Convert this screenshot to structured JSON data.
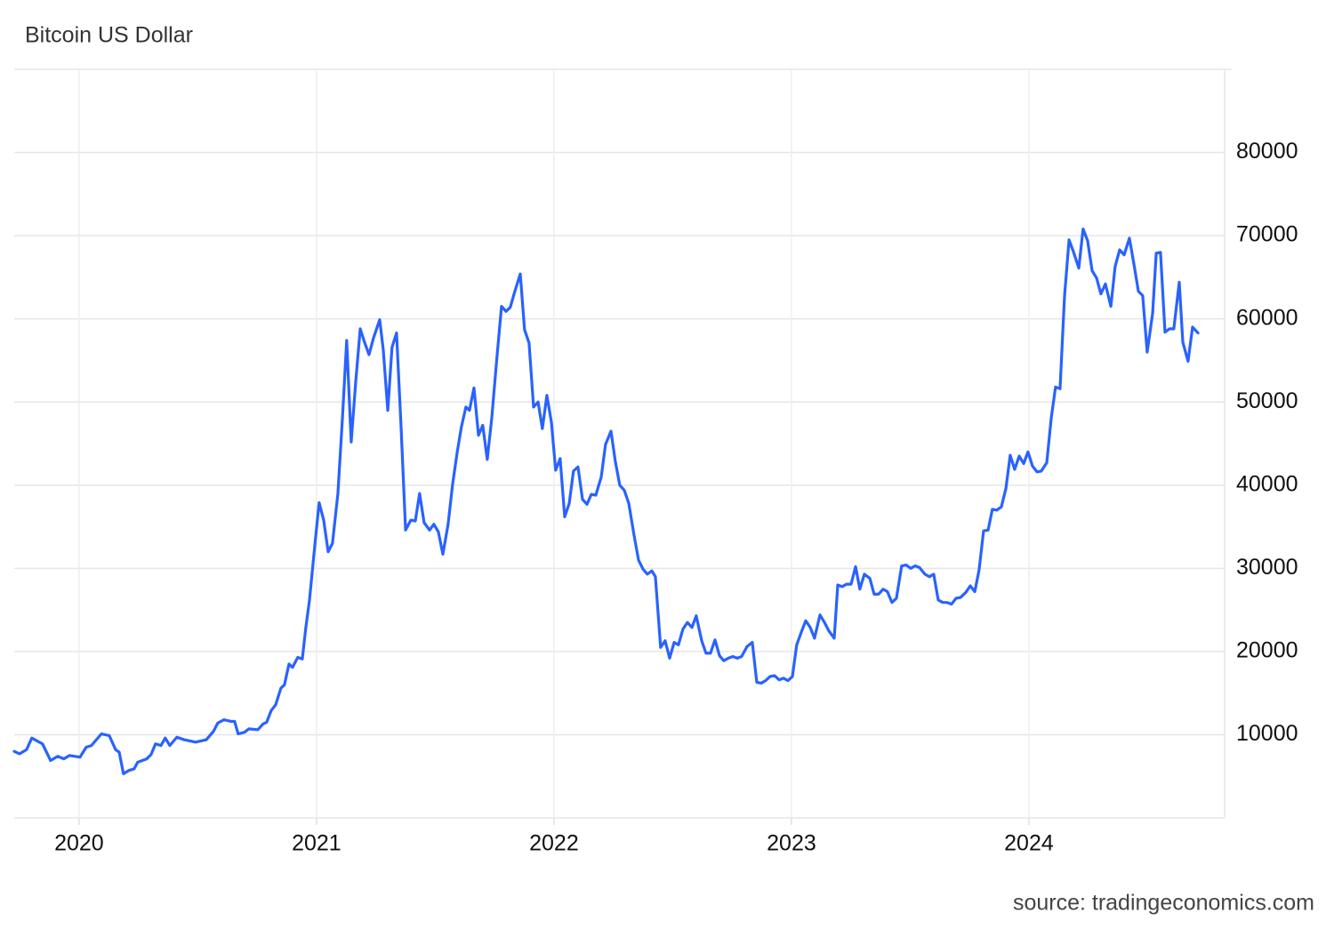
{
  "chart_data": {
    "type": "line",
    "title": "Bitcoin US Dollar",
    "source": "source: tradingeconomics.com",
    "color": "#2962ff",
    "grid": true,
    "y_axis_side": "right",
    "xlim": [
      2019.727,
      2024.824
    ],
    "xticks": [
      2020,
      2021,
      2022,
      2023,
      2024
    ],
    "ylim": [
      0,
      90000
    ],
    "yticks": [
      10000,
      20000,
      30000,
      40000,
      50000,
      60000,
      70000,
      80000
    ],
    "x": [
      2019.727,
      2019.749,
      2019.779,
      2019.801,
      2019.846,
      2019.88,
      2019.91,
      2019.936,
      2019.959,
      2020.004,
      2020.03,
      2020.052,
      2020.094,
      2020.127,
      2020.154,
      2020.169,
      2020.187,
      2020.21,
      2020.232,
      2020.247,
      2020.285,
      2020.303,
      2020.322,
      2020.345,
      2020.363,
      2020.382,
      2020.412,
      2020.442,
      2020.491,
      2020.536,
      2020.566,
      2020.584,
      2020.61,
      2020.64,
      2020.655,
      2020.67,
      2020.697,
      2020.715,
      2020.753,
      2020.775,
      2020.79,
      2020.809,
      2020.828,
      2020.85,
      2020.865,
      2020.884,
      2020.899,
      2020.921,
      2020.94,
      2020.955,
      2020.97,
      2020.996,
      2021.011,
      2021.03,
      2021.049,
      2021.067,
      2021.09,
      2021.109,
      2021.127,
      2021.146,
      2021.165,
      2021.184,
      2021.202,
      2021.221,
      2021.24,
      2021.266,
      2021.281,
      2021.3,
      2021.318,
      2021.337,
      2021.356,
      2021.375,
      2021.397,
      2021.416,
      2021.434,
      2021.453,
      2021.476,
      2021.494,
      2021.513,
      2021.532,
      2021.554,
      2021.573,
      2021.592,
      2021.61,
      2021.629,
      2021.644,
      2021.663,
      2021.682,
      2021.7,
      2021.719,
      2021.738,
      2021.757,
      2021.779,
      2021.798,
      2021.816,
      2021.835,
      2021.858,
      2021.876,
      2021.895,
      2021.914,
      2021.933,
      2021.951,
      2021.97,
      2021.989,
      2022.007,
      2022.026,
      2022.045,
      2022.064,
      2022.082,
      2022.101,
      2022.12,
      2022.139,
      2022.157,
      2022.176,
      2022.199,
      2022.217,
      2022.24,
      2022.258,
      2022.277,
      2022.296,
      2022.315,
      2022.337,
      2022.356,
      2022.375,
      2022.393,
      2022.412,
      2022.427,
      2022.449,
      2022.468,
      2022.487,
      2022.506,
      2022.524,
      2022.543,
      2022.562,
      2022.581,
      2022.599,
      2022.622,
      2022.64,
      2022.659,
      2022.678,
      2022.697,
      2022.715,
      2022.734,
      2022.753,
      2022.772,
      2022.79,
      2022.813,
      2022.835,
      2022.854,
      2022.873,
      2022.891,
      2022.91,
      2022.929,
      2022.948,
      2022.966,
      2022.985,
      2023.004,
      2023.022,
      2023.041,
      2023.06,
      2023.079,
      2023.097,
      2023.12,
      2023.139,
      2023.157,
      2023.18,
      2023.195,
      2023.213,
      2023.232,
      2023.251,
      2023.27,
      2023.288,
      2023.307,
      2023.33,
      2023.348,
      2023.367,
      2023.386,
      2023.404,
      2023.423,
      2023.442,
      2023.464,
      2023.483,
      2023.502,
      2023.521,
      2023.539,
      2023.562,
      2023.581,
      2023.599,
      2023.618,
      2023.637,
      2023.655,
      2023.674,
      2023.693,
      2023.712,
      2023.734,
      2023.753,
      2023.772,
      2023.79,
      2023.809,
      2023.828,
      2023.846,
      2023.865,
      2023.884,
      2023.903,
      2023.921,
      2023.94,
      2023.959,
      2023.978,
      2023.996,
      2024.015,
      2024.034,
      2024.052,
      2024.075,
      2024.094,
      2024.112,
      2024.131,
      2024.15,
      2024.169,
      2024.187,
      2024.21,
      2024.228,
      2024.247,
      2024.266,
      2024.285,
      2024.303,
      2024.322,
      2024.345,
      2024.363,
      2024.382,
      2024.401,
      2024.423,
      2024.442,
      2024.461,
      2024.479,
      2024.498,
      2024.521,
      2024.536,
      2024.554,
      2024.573,
      2024.592,
      2024.61,
      2024.633,
      2024.648,
      2024.67,
      2024.689,
      2024.712
    ],
    "values": [
      8000,
      7700,
      8200,
      9600,
      8900,
      6900,
      7400,
      7100,
      7500,
      7300,
      8500,
      8700,
      10100,
      9900,
      8200,
      7900,
      5300,
      5700,
      5900,
      6700,
      7100,
      7600,
      8900,
      8700,
      9600,
      8700,
      9700,
      9400,
      9100,
      9400,
      10400,
      11400,
      11800,
      11600,
      11600,
      10100,
      10300,
      10700,
      10600,
      11300,
      11500,
      12900,
      13600,
      15600,
      16000,
      18500,
      18100,
      19300,
      19100,
      22900,
      26100,
      33700,
      37900,
      35800,
      32000,
      33000,
      39000,
      48000,
      57400,
      45200,
      52400,
      58800,
      57200,
      55700,
      57700,
      59900,
      56300,
      49000,
      56600,
      58300,
      47000,
      34600,
      35800,
      35700,
      39000,
      35500,
      34600,
      35300,
      34400,
      31700,
      35300,
      40100,
      43900,
      47000,
      49400,
      49000,
      51700,
      46000,
      47200,
      43100,
      48100,
      54500,
      61500,
      60900,
      61400,
      63300,
      65400,
      58700,
      57100,
      49400,
      50000,
      46800,
      50800,
      47600,
      41800,
      43200,
      36200,
      37800,
      41700,
      42200,
      38300,
      37700,
      38900,
      38800,
      41000,
      44900,
      46500,
      42900,
      40000,
      39400,
      37800,
      34000,
      31000,
      29900,
      29300,
      29700,
      29000,
      20500,
      21300,
      19200,
      21100,
      20800,
      22700,
      23500,
      22900,
      24300,
      21300,
      19800,
      19800,
      21400,
      19500,
      18900,
      19200,
      19400,
      19200,
      19400,
      20600,
      21100,
      16300,
      16200,
      16500,
      17000,
      17100,
      16600,
      16800,
      16500,
      17000,
      20800,
      22300,
      23700,
      22900,
      21600,
      24400,
      23500,
      22500,
      21600,
      28000,
      27800,
      28100,
      28100,
      30200,
      27500,
      29300,
      28800,
      26900,
      26900,
      27500,
      27200,
      25900,
      26400,
      30300,
      30400,
      30000,
      30300,
      30100,
      29300,
      29000,
      29300,
      26200,
      25900,
      25900,
      25700,
      26400,
      26500,
      27100,
      27900,
      27200,
      29800,
      34500,
      34600,
      37100,
      37000,
      37400,
      39600,
      43600,
      41900,
      43500,
      42600,
      44000,
      42300,
      41600,
      41700,
      42700,
      48100,
      51800,
      51600,
      62800,
      69500,
      68100,
      66100,
      70800,
      69400,
      65800,
      64900,
      63000,
      64200,
      61500,
      66300,
      68300,
      67700,
      69700,
      66600,
      63300,
      62800,
      56000,
      60700,
      67900,
      68000,
      58400,
      58800,
      58800,
      64400,
      57200,
      54900,
      59000,
      58300
    ]
  }
}
